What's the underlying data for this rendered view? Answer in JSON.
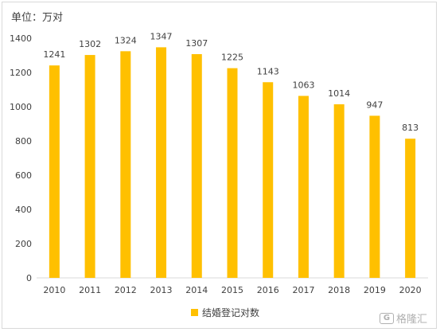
{
  "unit_label": "单位：万对",
  "legend_label": "结婚登记对数",
  "watermark_text": "格隆汇",
  "watermark_icon": "G",
  "bar_color": "#FFC000",
  "chart_data": {
    "type": "bar",
    "title": "",
    "xlabel": "",
    "ylabel": "单位：万对",
    "categories": [
      "2010",
      "2011",
      "2012",
      "2013",
      "2014",
      "2015",
      "2016",
      "2017",
      "2018",
      "2019",
      "2020"
    ],
    "series": [
      {
        "name": "结婚登记对数",
        "values": [
          1241,
          1302,
          1324,
          1347,
          1307,
          1225,
          1143,
          1063,
          1014,
          947,
          813
        ]
      }
    ],
    "ylim": [
      0,
      1400
    ],
    "yticks": [
      0,
      200,
      400,
      600,
      800,
      1000,
      1200,
      1400
    ],
    "grid": false,
    "legend_position": "bottom",
    "data_labels": true
  }
}
